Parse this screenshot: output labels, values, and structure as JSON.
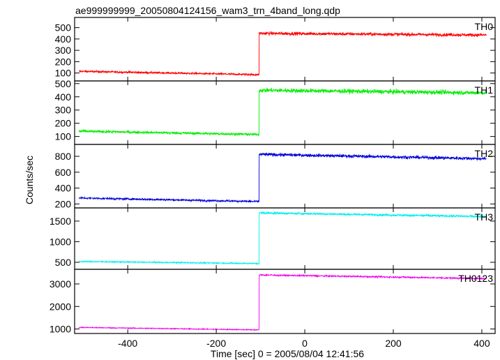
{
  "title": "ae999999999_20050804124156_wam3_trn_4band_long.qdp",
  "ylabel": "Counts/sec",
  "xlabel": "Time [sec] 0 = 2005/08/04 12:41:56",
  "x_range": [
    -520,
    430
  ],
  "x_ticks": [
    -400,
    -200,
    0,
    200,
    400
  ],
  "step_time": -103,
  "chart_data": [
    {
      "type": "line",
      "name": "TH0",
      "color": "#ff0000",
      "ylim": [
        30,
        590
      ],
      "yticks": [
        100,
        200,
        300,
        400,
        500
      ],
      "pre_start": 115,
      "pre_end": 85,
      "post_start": 450,
      "post_end": 435,
      "noise": 14,
      "x": [
        -510,
        -103,
        410
      ]
    },
    {
      "type": "line",
      "name": "TH1",
      "color": "#00ee00",
      "ylim": [
        40,
        520
      ],
      "yticks": [
        100,
        200,
        300,
        400,
        500
      ],
      "pre_start": 140,
      "pre_end": 115,
      "post_start": 450,
      "post_end": 430,
      "noise": 16,
      "x": [
        -510,
        -103,
        410
      ]
    },
    {
      "type": "line",
      "name": "TH2",
      "color": "#0000dd",
      "ylim": [
        150,
        950
      ],
      "yticks": [
        200,
        400,
        600,
        800
      ],
      "pre_start": 275,
      "pre_end": 230,
      "post_start": 825,
      "post_end": 770,
      "noise": 20,
      "x": [
        -510,
        -103,
        410
      ]
    },
    {
      "type": "line",
      "name": "TH3",
      "color": "#00eeee",
      "ylim": [
        330,
        1820
      ],
      "yticks": [
        500,
        1000,
        1500
      ],
      "pre_start": 520,
      "pre_end": 470,
      "post_start": 1700,
      "post_end": 1610,
      "noise": 26,
      "x": [
        -510,
        -103,
        410
      ]
    },
    {
      "type": "line",
      "name": "TH0123",
      "color": "#ee00ee",
      "ylim": [
        800,
        3650
      ],
      "yticks": [
        1000,
        2000,
        3000
      ],
      "pre_start": 1070,
      "pre_end": 960,
      "post_start": 3400,
      "post_end": 3240,
      "noise": 35,
      "x": [
        -510,
        -103,
        410
      ]
    }
  ]
}
